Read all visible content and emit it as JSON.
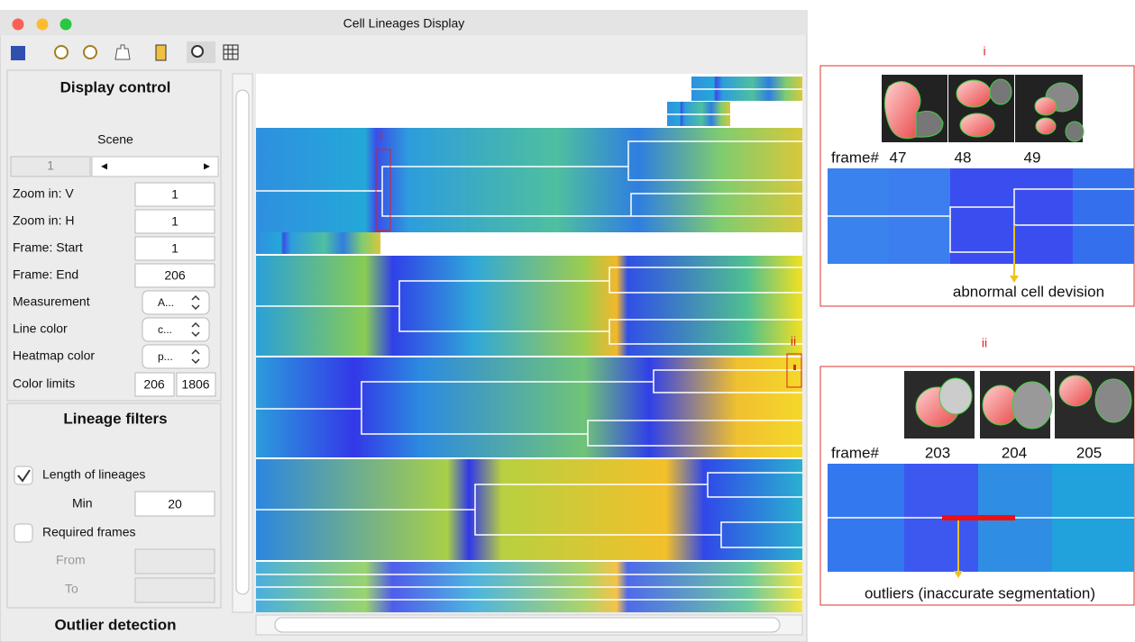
{
  "window": {
    "title": "Cell Lineages Display"
  },
  "display_control": {
    "heading": "Display control",
    "scene_label": "Scene",
    "scene_value": 1,
    "fields": [
      {
        "label": "Zoom in: V",
        "value": 1
      },
      {
        "label": "Zoom in: H",
        "value": 1
      },
      {
        "label": "Frame: Start",
        "value": 1
      },
      {
        "label": "Frame: End",
        "value": 206
      },
      {
        "label": "Measurement",
        "value": "A..."
      },
      {
        "label": "Line color",
        "value": "c..."
      },
      {
        "label": "Heatmap color",
        "value": "p..."
      }
    ],
    "color_limits": {
      "label": "Color limits",
      "min": 206,
      "max": 1806
    }
  },
  "lineage_filters": {
    "heading": "Lineage filters",
    "length_label": "Length of lineages",
    "min_label": "Min",
    "min_value": 20,
    "required_label": "Required frames",
    "from_label": "From",
    "to_label": "To"
  },
  "outlier_heading": "Outlier detection",
  "annotations": [
    {
      "label": "i",
      "frame_label": "frame#",
      "frames": [
        47,
        48,
        49
      ],
      "caption": "abnormal cell devision"
    },
    {
      "label": "ii",
      "frame_label": "frame#",
      "frames": [
        203,
        204,
        205
      ],
      "caption": "outliers (inaccurate segmentation)"
    }
  ]
}
